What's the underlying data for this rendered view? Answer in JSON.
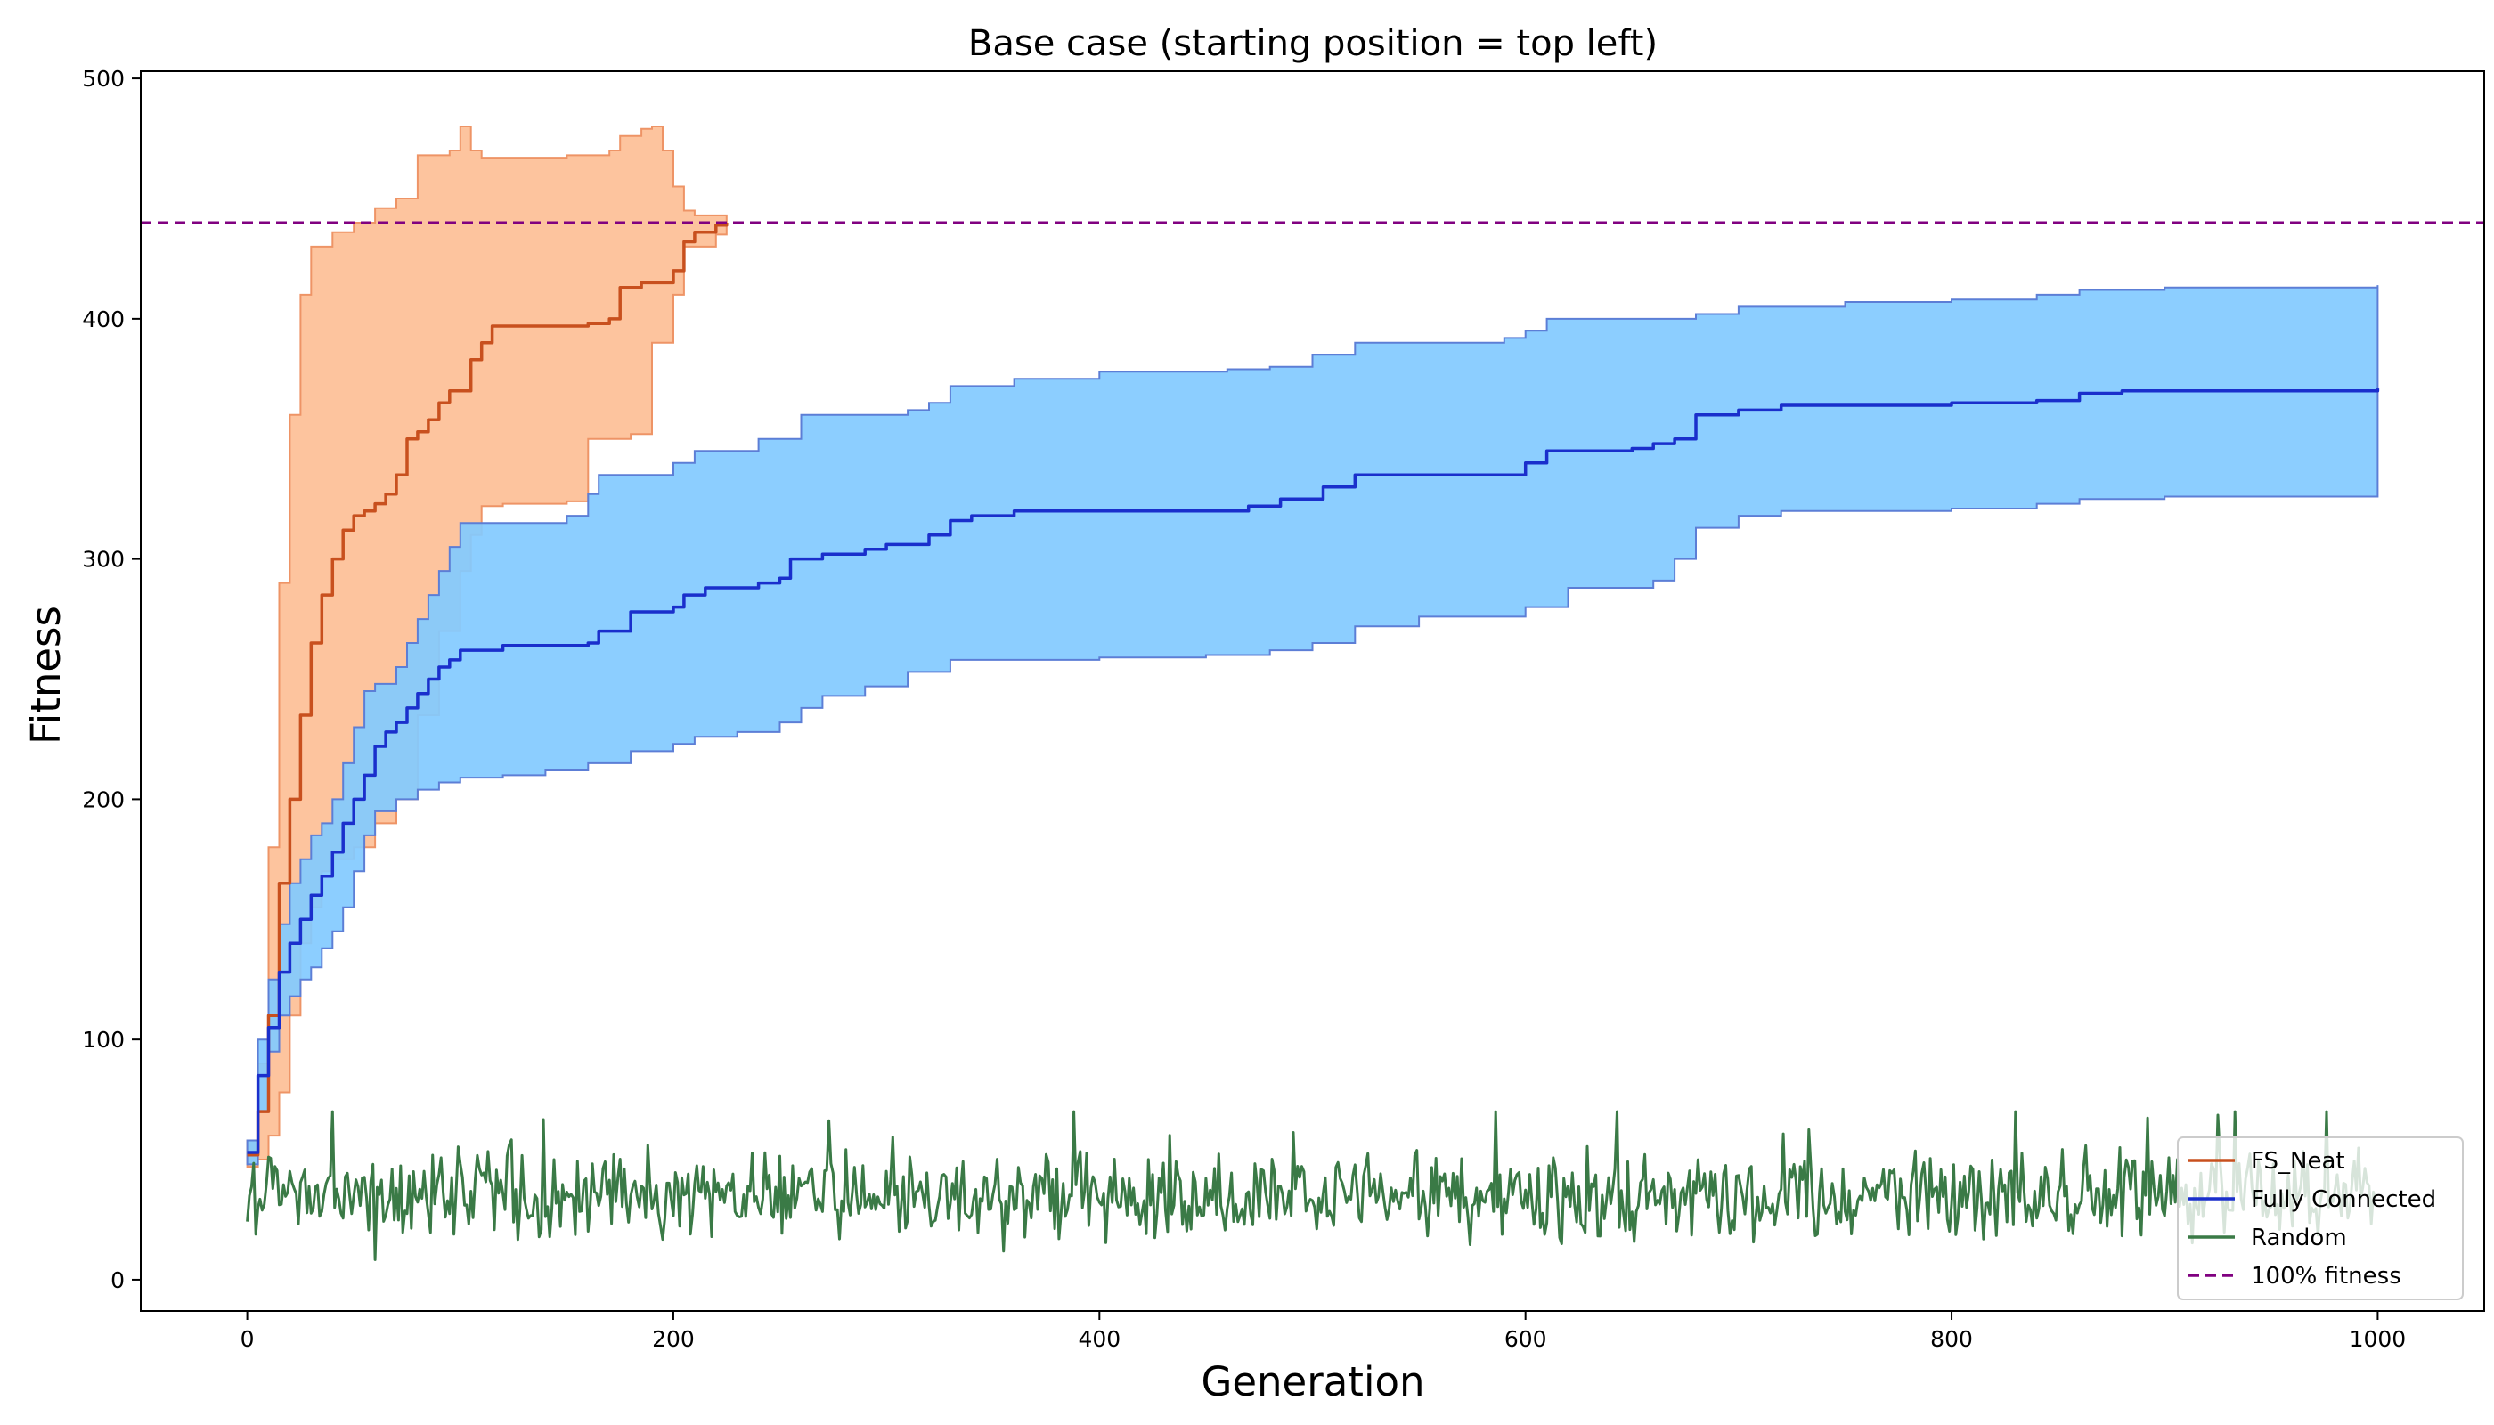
{
  "chart_data": {
    "type": "line",
    "title": "Base case (starting position = top left)",
    "xlabel": "Generation",
    "ylabel": "Fitness",
    "xlim": [
      -50,
      1050
    ],
    "ylim": [
      -13,
      503
    ],
    "xticks": [
      0,
      200,
      400,
      600,
      800,
      1000
    ],
    "yticks": [
      0,
      100,
      200,
      300,
      400,
      500
    ],
    "grid": false,
    "legend_position": "bottom-right",
    "reference_line": {
      "name": "100% fitness",
      "y": 440,
      "color": "#800080",
      "style": "dashed"
    },
    "series": [
      {
        "name": "FS_Neat",
        "color": "#c8501e",
        "band_color": "#fdc49e",
        "band_edge": "#ee9466",
        "mean": [
          [
            0,
            52
          ],
          [
            5,
            70
          ],
          [
            10,
            110
          ],
          [
            15,
            165
          ],
          [
            20,
            200
          ],
          [
            25,
            235
          ],
          [
            30,
            265
          ],
          [
            35,
            285
          ],
          [
            40,
            300
          ],
          [
            45,
            312
          ],
          [
            50,
            318
          ],
          [
            55,
            320
          ],
          [
            60,
            323
          ],
          [
            65,
            327
          ],
          [
            70,
            335
          ],
          [
            75,
            350
          ],
          [
            80,
            353
          ],
          [
            85,
            358
          ],
          [
            90,
            365
          ],
          [
            95,
            370
          ],
          [
            100,
            370
          ],
          [
            105,
            383
          ],
          [
            110,
            390
          ],
          [
            115,
            397
          ],
          [
            120,
            397
          ],
          [
            140,
            397
          ],
          [
            160,
            398
          ],
          [
            170,
            400
          ],
          [
            175,
            413
          ],
          [
            185,
            415
          ],
          [
            200,
            420
          ],
          [
            205,
            432
          ],
          [
            210,
            436
          ],
          [
            220,
            439
          ],
          [
            225,
            440
          ]
        ],
        "upper": [
          [
            0,
            58
          ],
          [
            5,
            90
          ],
          [
            10,
            180
          ],
          [
            15,
            290
          ],
          [
            20,
            360
          ],
          [
            25,
            410
          ],
          [
            30,
            430
          ],
          [
            40,
            436
          ],
          [
            50,
            440
          ],
          [
            60,
            446
          ],
          [
            70,
            450
          ],
          [
            80,
            468
          ],
          [
            95,
            470
          ],
          [
            100,
            480
          ],
          [
            105,
            470
          ],
          [
            110,
            467
          ],
          [
            150,
            468
          ],
          [
            170,
            470
          ],
          [
            175,
            476
          ],
          [
            185,
            479
          ],
          [
            190,
            480
          ],
          [
            195,
            470
          ],
          [
            200,
            455
          ],
          [
            205,
            445
          ],
          [
            210,
            443
          ],
          [
            225,
            443
          ]
        ],
        "lower": [
          [
            0,
            47
          ],
          [
            5,
            50
          ],
          [
            10,
            60
          ],
          [
            15,
            78
          ],
          [
            20,
            110
          ],
          [
            25,
            140
          ],
          [
            30,
            155
          ],
          [
            35,
            170
          ],
          [
            40,
            175
          ],
          [
            50,
            180
          ],
          [
            60,
            190
          ],
          [
            70,
            200
          ],
          [
            80,
            235
          ],
          [
            90,
            270
          ],
          [
            100,
            295
          ],
          [
            105,
            310
          ],
          [
            110,
            322
          ],
          [
            120,
            323
          ],
          [
            150,
            324
          ],
          [
            160,
            350
          ],
          [
            180,
            352
          ],
          [
            190,
            390
          ],
          [
            200,
            410
          ],
          [
            205,
            430
          ],
          [
            220,
            435
          ],
          [
            225,
            435
          ]
        ]
      },
      {
        "name": "Fully Connected",
        "color": "#1a2fcc",
        "band_color": "#82caff",
        "band_edge": "#5c7ed6",
        "mean": [
          [
            0,
            53
          ],
          [
            5,
            85
          ],
          [
            10,
            105
          ],
          [
            15,
            128
          ],
          [
            20,
            140
          ],
          [
            25,
            150
          ],
          [
            30,
            160
          ],
          [
            35,
            168
          ],
          [
            40,
            178
          ],
          [
            45,
            190
          ],
          [
            50,
            200
          ],
          [
            55,
            210
          ],
          [
            60,
            222
          ],
          [
            65,
            228
          ],
          [
            70,
            232
          ],
          [
            75,
            238
          ],
          [
            80,
            244
          ],
          [
            85,
            250
          ],
          [
            90,
            255
          ],
          [
            95,
            258
          ],
          [
            100,
            262
          ],
          [
            120,
            264
          ],
          [
            160,
            265
          ],
          [
            165,
            270
          ],
          [
            180,
            278
          ],
          [
            200,
            280
          ],
          [
            205,
            285
          ],
          [
            215,
            288
          ],
          [
            240,
            290
          ],
          [
            250,
            292
          ],
          [
            255,
            300
          ],
          [
            270,
            302
          ],
          [
            290,
            304
          ],
          [
            300,
            306
          ],
          [
            320,
            310
          ],
          [
            330,
            316
          ],
          [
            340,
            318
          ],
          [
            360,
            320
          ],
          [
            380,
            320
          ],
          [
            460,
            320
          ],
          [
            470,
            322
          ],
          [
            485,
            325
          ],
          [
            505,
            330
          ],
          [
            520,
            335
          ],
          [
            590,
            335
          ],
          [
            600,
            340
          ],
          [
            610,
            345
          ],
          [
            650,
            346
          ],
          [
            660,
            348
          ],
          [
            670,
            350
          ],
          [
            680,
            360
          ],
          [
            700,
            362
          ],
          [
            720,
            364
          ],
          [
            800,
            365
          ],
          [
            840,
            366
          ],
          [
            860,
            369
          ],
          [
            880,
            370
          ],
          [
            1000,
            371
          ]
        ],
        "upper": [
          [
            0,
            58
          ],
          [
            5,
            100
          ],
          [
            10,
            125
          ],
          [
            15,
            148
          ],
          [
            20,
            165
          ],
          [
            25,
            175
          ],
          [
            30,
            185
          ],
          [
            35,
            190
          ],
          [
            40,
            200
          ],
          [
            45,
            215
          ],
          [
            50,
            230
          ],
          [
            55,
            245
          ],
          [
            60,
            248
          ],
          [
            70,
            255
          ],
          [
            75,
            265
          ],
          [
            80,
            275
          ],
          [
            85,
            285
          ],
          [
            90,
            295
          ],
          [
            95,
            305
          ],
          [
            100,
            315
          ],
          [
            110,
            315
          ],
          [
            150,
            318
          ],
          [
            160,
            327
          ],
          [
            165,
            335
          ],
          [
            180,
            335
          ],
          [
            200,
            340
          ],
          [
            210,
            345
          ],
          [
            240,
            350
          ],
          [
            260,
            360
          ],
          [
            310,
            362
          ],
          [
            320,
            365
          ],
          [
            330,
            372
          ],
          [
            360,
            375
          ],
          [
            400,
            378
          ],
          [
            460,
            379
          ],
          [
            480,
            380
          ],
          [
            500,
            385
          ],
          [
            520,
            390
          ],
          [
            590,
            392
          ],
          [
            600,
            395
          ],
          [
            610,
            400
          ],
          [
            680,
            402
          ],
          [
            700,
            405
          ],
          [
            750,
            407
          ],
          [
            800,
            408
          ],
          [
            840,
            410
          ],
          [
            860,
            412
          ],
          [
            900,
            413
          ],
          [
            1000,
            414
          ]
        ],
        "lower": [
          [
            0,
            48
          ],
          [
            5,
            70
          ],
          [
            10,
            95
          ],
          [
            15,
            110
          ],
          [
            20,
            118
          ],
          [
            25,
            125
          ],
          [
            30,
            130
          ],
          [
            35,
            138
          ],
          [
            40,
            145
          ],
          [
            45,
            155
          ],
          [
            50,
            170
          ],
          [
            55,
            185
          ],
          [
            60,
            195
          ],
          [
            70,
            200
          ],
          [
            80,
            204
          ],
          [
            90,
            207
          ],
          [
            100,
            209
          ],
          [
            120,
            210
          ],
          [
            140,
            212
          ],
          [
            160,
            215
          ],
          [
            180,
            220
          ],
          [
            200,
            223
          ],
          [
            210,
            226
          ],
          [
            230,
            228
          ],
          [
            250,
            232
          ],
          [
            260,
            238
          ],
          [
            270,
            243
          ],
          [
            290,
            247
          ],
          [
            310,
            253
          ],
          [
            330,
            258
          ],
          [
            400,
            259
          ],
          [
            450,
            260
          ],
          [
            480,
            262
          ],
          [
            500,
            265
          ],
          [
            520,
            272
          ],
          [
            550,
            276
          ],
          [
            600,
            280
          ],
          [
            620,
            288
          ],
          [
            660,
            291
          ],
          [
            670,
            300
          ],
          [
            680,
            313
          ],
          [
            700,
            318
          ],
          [
            720,
            320
          ],
          [
            800,
            321
          ],
          [
            840,
            323
          ],
          [
            860,
            325
          ],
          [
            900,
            326
          ],
          [
            1000,
            327
          ]
        ]
      },
      {
        "name": "Random",
        "color": "#3a7a46",
        "seed": 1,
        "n": 1000,
        "base": 35,
        "spread": 9,
        "min": 8,
        "max": 70
      }
    ]
  }
}
